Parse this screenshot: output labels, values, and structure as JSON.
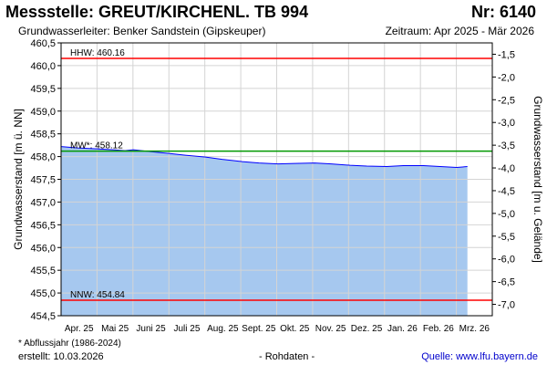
{
  "header": {
    "title": "Messstelle: GREUT/KIRCHENL. TB 994",
    "nr": "Nr: 6140",
    "aquifer": "Grundwasserleiter:   Benker Sandstein (Gipskeuper)",
    "period": "Zeitraum: Apr 2025 - Mär 2026"
  },
  "footer": {
    "footnote": "* Abflussjahr (1986-2024)",
    "created": "erstellt:  10.03.2026",
    "raw": "- Rohdaten -",
    "source": "Quelle: www.lfu.bayern.de"
  },
  "chart_data": {
    "type": "area",
    "ylabel": "Grundwasserstand [m ü. NN]",
    "ylabel_right": "Grundwasserstand [m u. Gelände]",
    "ylim": [
      454.5,
      460.5
    ],
    "y_ticks": [
      "460,5",
      "460,0",
      "459,5",
      "459,0",
      "458,5",
      "458,0",
      "457,5",
      "457,0",
      "456,5",
      "456,0",
      "455,5",
      "455,0",
      "454,5"
    ],
    "ylim_right": [
      -7.25,
      -1.25
    ],
    "y2_ticks": [
      "-7,0",
      "-6,5",
      "-6,0",
      "-5,5",
      "-5,0",
      "-4,5",
      "-4,0",
      "-3,5",
      "-3,0",
      "-2,5",
      "-2,0",
      "-1,5"
    ],
    "x_ticks": [
      "Apr. 25",
      "Mai 25",
      "Juni 25",
      "Juli 25",
      "Aug. 25",
      "Sept. 25",
      "Okt. 25",
      "Nov. 25",
      "Dez. 25",
      "Jan. 26",
      "Feb. 26",
      "Mrz. 26"
    ],
    "x_range": [
      "2025-04-01",
      "2026-03-31"
    ],
    "series": [
      {
        "values": [
          [
            "2025-04-01",
            458.22
          ],
          [
            "2025-04-15",
            458.19
          ],
          [
            "2025-05-01",
            458.17
          ],
          [
            "2025-05-15",
            458.15
          ],
          [
            "2025-05-25",
            458.13
          ],
          [
            "2025-06-01",
            458.15
          ],
          [
            "2025-06-15",
            458.11
          ],
          [
            "2025-07-01",
            458.07
          ],
          [
            "2025-07-15",
            458.03
          ],
          [
            "2025-08-01",
            457.99
          ],
          [
            "2025-08-15",
            457.94
          ],
          [
            "2025-09-01",
            457.89
          ],
          [
            "2025-09-15",
            457.86
          ],
          [
            "2025-10-01",
            457.84
          ],
          [
            "2025-10-15",
            457.85
          ],
          [
            "2025-11-01",
            457.86
          ],
          [
            "2025-11-15",
            457.84
          ],
          [
            "2025-12-01",
            457.81
          ],
          [
            "2025-12-15",
            457.79
          ],
          [
            "2026-01-01",
            457.78
          ],
          [
            "2026-01-15",
            457.8
          ],
          [
            "2026-02-01",
            457.8
          ],
          [
            "2026-02-15",
            457.78
          ],
          [
            "2026-03-01",
            457.76
          ],
          [
            "2026-03-10",
            457.78
          ]
        ],
        "color": "#0000ff",
        "fill": "#a6c8ef"
      }
    ],
    "reference_lines": [
      {
        "label": "HHW: 460.16",
        "value": 460.16,
        "color": "#ff0000"
      },
      {
        "label": "MW*: 458.12",
        "value": 458.12,
        "color": "#009900"
      },
      {
        "label": "NNW: 454.84",
        "value": 454.84,
        "color": "#ff0000"
      }
    ],
    "grid": true
  }
}
